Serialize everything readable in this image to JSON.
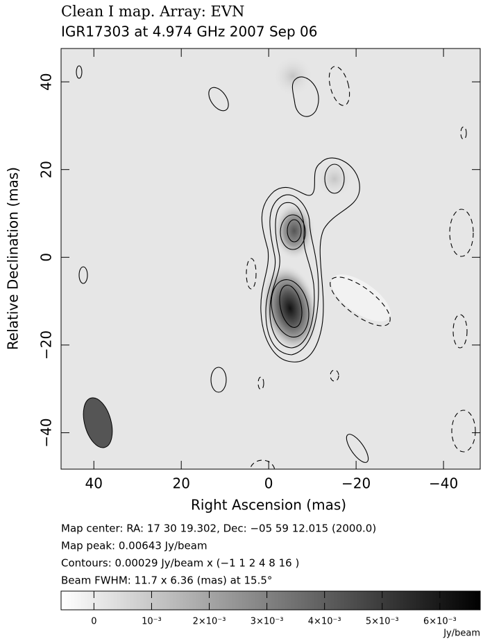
{
  "chart_data": {
    "type": "contour-map",
    "title": "Clean I map.  Array:  EVN",
    "subtitle": "IGR17303 at 4.974 GHz 2007 Sep 06",
    "xlabel": "Right Ascension  (mas)",
    "ylabel": "Relative Declination  (mas)",
    "xlim": [
      47.5,
      -48.4
    ],
    "ylim": [
      -48.3,
      47.6
    ],
    "xticks": [
      40,
      20,
      0,
      {
        "value": -20,
        "label": "−20"
      },
      {
        "value": -40,
        "label": "−40"
      }
    ],
    "yticks": [
      40,
      20,
      0,
      {
        "value": -20,
        "label": "−20"
      },
      {
        "value": -40,
        "label": "−40"
      }
    ],
    "notes": [
      "Map center:  RA: 17 30 19.302,  Dec: −05 59 12.015 (2000.0)",
      "Map peak: 0.00643 Jy/beam",
      "Contours: 0.00029 Jy/beam x (−1 1 2 4 8 16 )",
      "Beam FWHM: 11.7 x 6.36 (mas) at 15.5°"
    ],
    "colorbar": {
      "lim": [
        -0.00057,
        0.0067
      ],
      "ticks": [
        0,
        {
          "value": 0.001,
          "label": "10⁻³"
        },
        {
          "value": 0.002,
          "label": "2×10⁻³"
        },
        {
          "value": 0.003,
          "label": "3×10⁻³"
        },
        {
          "value": 0.004,
          "label": "4×10⁻³"
        },
        {
          "value": 0.005,
          "label": "5×10⁻³"
        },
        {
          "value": 0.006,
          "label": "6×10⁻³"
        }
      ],
      "label": "Jy/beam"
    }
  }
}
